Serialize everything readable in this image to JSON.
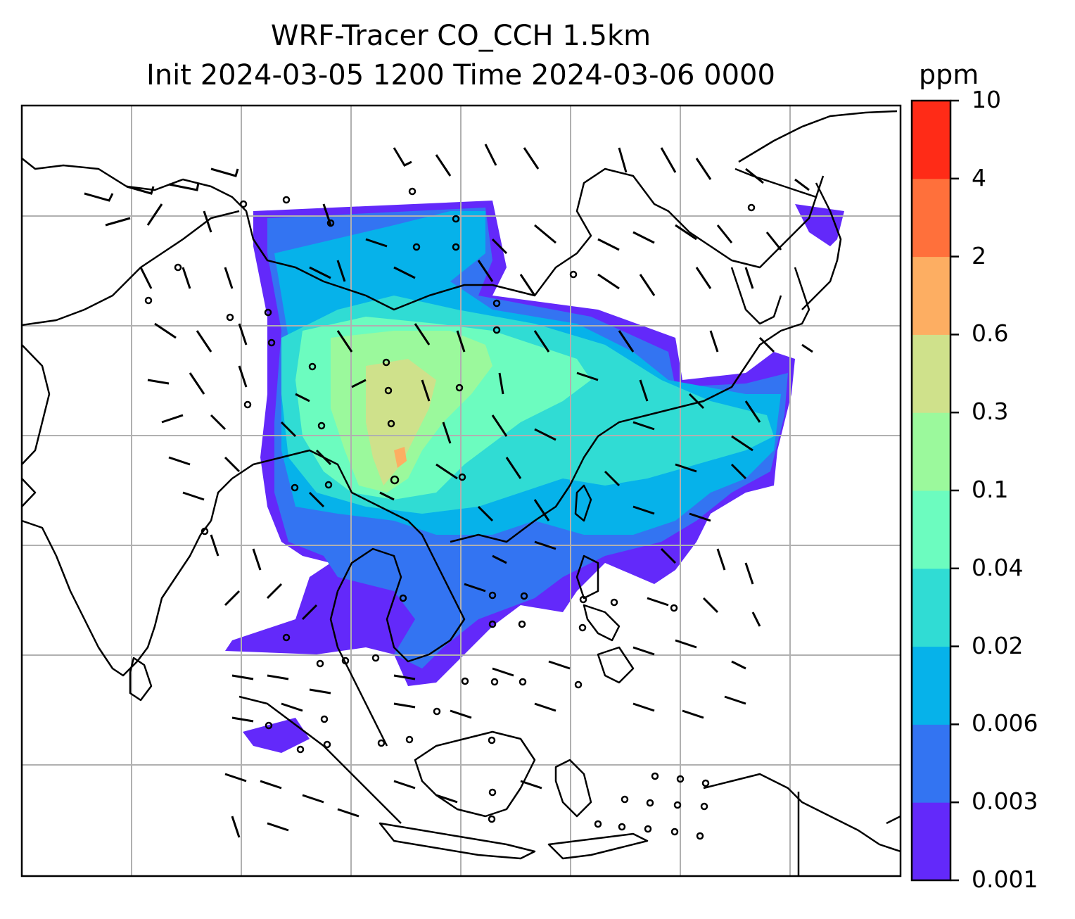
{
  "title_line1": "WRF-Tracer CO_CCH 1.5km",
  "title_line2": "Init 2024-03-05 1200 Time 2024-03-06 0000",
  "colorbar": {
    "unit": "ppm",
    "levels": [
      "0.001",
      "0.003",
      "0.006",
      "0.02",
      "0.04",
      "0.1",
      "0.3",
      "0.6",
      "2",
      "4",
      "10"
    ],
    "colors": [
      "#6329fa",
      "#3374f2",
      "#06b2ea",
      "#30dcd4",
      "#6cfcbf",
      "#9bf99c",
      "#cfe18b",
      "#fdae62",
      "#ff703b",
      "#ff2b17"
    ]
  }
}
